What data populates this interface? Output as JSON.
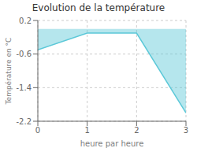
{
  "chart_data": {
    "type": "area",
    "title": "Evolution de la température",
    "xlabel": "heure par heure",
    "ylabel": "Température en °C",
    "x": [
      0,
      1,
      2,
      3
    ],
    "values": [
      -0.5,
      -0.1,
      -0.1,
      -2.0
    ],
    "color": "#5bc8d8",
    "xlim": [
      0,
      3
    ],
    "ylim": [
      -2.2,
      0.2
    ],
    "xticks": [
      0,
      1,
      2,
      3
    ],
    "yticks": [
      0.2,
      -0.6,
      -1.4,
      -2.2
    ],
    "grid": true
  }
}
